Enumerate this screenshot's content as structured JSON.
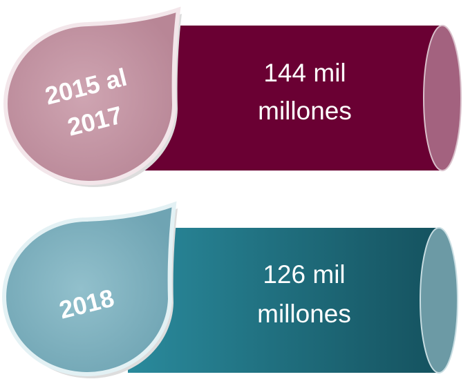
{
  "items": [
    {
      "badge_lines": [
        "2015 al",
        "2017"
      ],
      "amount_lines": [
        "144 mil",
        "millones"
      ]
    },
    {
      "badge_lines": [
        "2018"
      ],
      "amount_lines": [
        "126 mil",
        "millones"
      ]
    }
  ]
}
